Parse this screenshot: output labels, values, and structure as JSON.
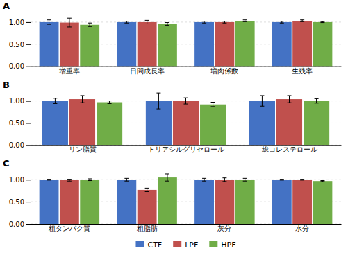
{
  "chart_data": [
    {
      "type": "bar",
      "title": "A",
      "categories": [
        "増重率",
        "日間成長率",
        "増肉係数",
        "生残率"
      ],
      "series": [
        {
          "name": "CTF",
          "color": "#4472c4",
          "values": [
            1.0,
            1.0,
            1.0,
            1.0
          ],
          "errors": [
            0.05,
            0.02,
            0.02,
            0.02
          ]
        },
        {
          "name": "LPF",
          "color": "#c0504d",
          "values": [
            0.99,
            1.0,
            1.0,
            1.03
          ],
          "errors": [
            0.1,
            0.04,
            0.02,
            0.02
          ]
        },
        {
          "name": "HPF",
          "color": "#70ad47",
          "values": [
            0.94,
            0.96,
            1.03,
            1.0
          ],
          "errors": [
            0.04,
            0.03,
            0.02,
            0.01
          ]
        }
      ],
      "ylim": [
        0.0,
        1.25
      ],
      "yticks": [
        {
          "value": 0.0,
          "label": "0.00"
        },
        {
          "value": 0.5,
          "label": "0.50"
        },
        {
          "value": 1.0,
          "label": "1.00"
        }
      ],
      "grid": true
    },
    {
      "type": "bar",
      "title": "B",
      "categories": [
        "リン脂質",
        "トリアシルグリセロール",
        "総コレステロール"
      ],
      "series": [
        {
          "name": "CTF",
          "color": "#4472c4",
          "values": [
            1.0,
            1.0,
            1.0
          ],
          "errors": [
            0.06,
            0.18,
            0.12
          ]
        },
        {
          "name": "LPF",
          "color": "#c0504d",
          "values": [
            1.04,
            1.0,
            1.04
          ],
          "errors": [
            0.08,
            0.07,
            0.08
          ]
        },
        {
          "name": "HPF",
          "color": "#70ad47",
          "values": [
            0.97,
            0.92,
            1.0
          ],
          "errors": [
            0.03,
            0.05,
            0.05
          ]
        }
      ],
      "ylim": [
        0.0,
        1.25
      ],
      "yticks": [
        {
          "value": 0.0,
          "label": "0.00"
        },
        {
          "value": 0.5,
          "label": "0.50"
        },
        {
          "value": 1.0,
          "label": "1.00"
        }
      ],
      "grid": true
    },
    {
      "type": "bar",
      "title": "C",
      "categories": [
        "粗タンパク質",
        "粗脂肪",
        "灰分",
        "水分"
      ],
      "series": [
        {
          "name": "CTF",
          "color": "#4472c4",
          "values": [
            1.0,
            1.0,
            1.0,
            1.0
          ],
          "errors": [
            0.01,
            0.03,
            0.03,
            0.01
          ]
        },
        {
          "name": "LPF",
          "color": "#c0504d",
          "values": [
            0.99,
            0.77,
            1.0,
            1.0
          ],
          "errors": [
            0.02,
            0.04,
            0.04,
            0.01
          ]
        },
        {
          "name": "HPF",
          "color": "#70ad47",
          "values": [
            1.0,
            1.05,
            1.0,
            0.97
          ],
          "errors": [
            0.02,
            0.08,
            0.03,
            0.01
          ]
        }
      ],
      "ylim": [
        0.0,
        1.25
      ],
      "yticks": [
        {
          "value": 0.0,
          "label": "0.00"
        },
        {
          "value": 0.5,
          "label": "0.50"
        },
        {
          "value": 1.0,
          "label": "1.00"
        }
      ],
      "grid": true,
      "legend": "bottom"
    }
  ]
}
